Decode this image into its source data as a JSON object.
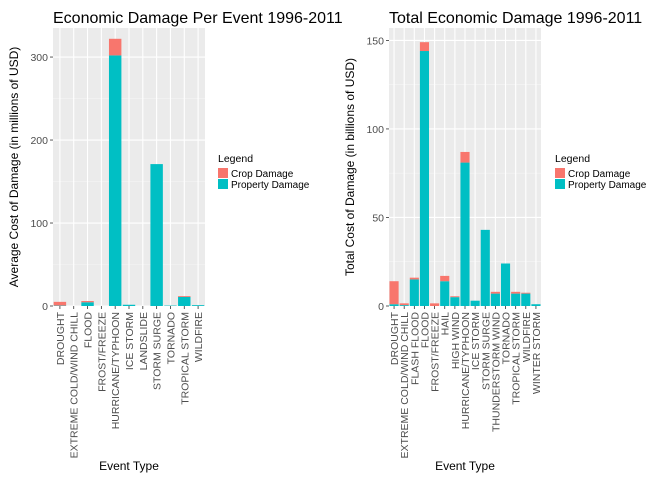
{
  "chart_data": [
    {
      "type": "bar",
      "stacked": true,
      "title": "Economic Damage Per Event 1996-2011",
      "xlabel": "Event Type",
      "ylabel": "Average Cost of Damage (in millions of USD)",
      "ylim": [
        0,
        335
      ],
      "yticks": [
        0,
        100,
        200,
        300
      ],
      "categories": [
        "DROUGHT",
        "EXTREME COLD/WIND CHILL",
        "FLOOD",
        "FROST/FREEZE",
        "HURRICANE/TYPHOON",
        "ICE STORM",
        "LANDSLIDE",
        "STORM SURGE",
        "TORNADO",
        "TROPICAL STORM",
        "WILDFIRE"
      ],
      "series": [
        {
          "name": "Property Damage",
          "color": "#00BFC4",
          "values": [
            0.5,
            0,
            4.5,
            0,
            302,
            1.5,
            0,
            171,
            0.5,
            11,
            1
          ]
        },
        {
          "name": "Crop Damage",
          "color": "#F8766D",
          "values": [
            4.5,
            0,
            1.5,
            0,
            20,
            0,
            0,
            0,
            0,
            1,
            0
          ]
        }
      ],
      "legend": {
        "title": "Legend",
        "position": "right"
      },
      "grid": true
    },
    {
      "type": "bar",
      "stacked": true,
      "title": "Total Economic Damage 1996-2011",
      "xlabel": "Event Type",
      "ylabel": "Total Cost of Damage (in billions of USD)",
      "ylim": [
        0,
        157
      ],
      "yticks": [
        0,
        50,
        100,
        150
      ],
      "categories": [
        "DROUGHT",
        "EXTREME COLD/WIND CHILL",
        "FLASH FLOOD",
        "FLOOD",
        "FROST/FREEZE",
        "HAIL",
        "HIGH WIND",
        "HURRICANE/TYPHOON",
        "ICE STORM",
        "STORM SURGE",
        "THUNDERSTORM WIND",
        "TORNADO",
        "TROPICAL STORM",
        "WILDFIRE",
        "WINTER STORM"
      ],
      "series": [
        {
          "name": "Property Damage",
          "color": "#00BFC4",
          "values": [
            1,
            0.5,
            15,
            144,
            0,
            14,
            5,
            81,
            3,
            43,
            7,
            24,
            7,
            7,
            1
          ]
        },
        {
          "name": "Crop Damage",
          "color": "#F8766D",
          "values": [
            13,
            1,
            1,
            5,
            1.5,
            3,
            0.5,
            6,
            0,
            0,
            1,
            0,
            1,
            0.5,
            0
          ]
        }
      ],
      "legend": {
        "title": "Legend",
        "position": "right"
      },
      "grid": true
    }
  ]
}
